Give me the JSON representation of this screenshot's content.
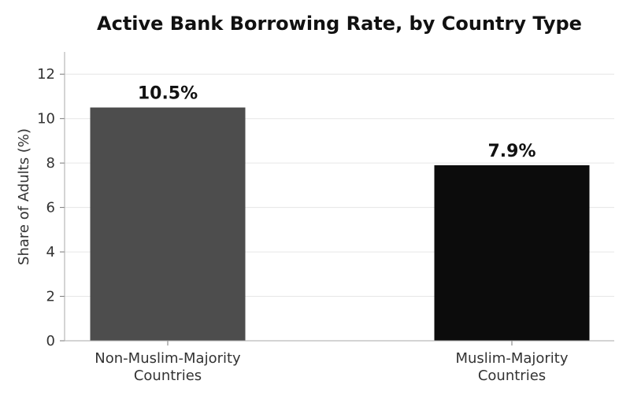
{
  "chart_data": {
    "type": "bar",
    "title": "Active Bank Borrowing Rate, by Country Type",
    "xlabel": "",
    "ylabel": "Share of Adults (%)",
    "categories": [
      [
        "Non-Muslim-Majority",
        "Countries"
      ],
      [
        "Muslim-Majority",
        "Countries"
      ]
    ],
    "values": [
      10.5,
      7.9
    ],
    "data_labels": [
      "10.5%",
      "7.9%"
    ],
    "colors": [
      "#4d4d4d",
      "#0c0c0c"
    ],
    "ylim": [
      0,
      13
    ],
    "yticks": [
      0,
      2,
      4,
      6,
      8,
      10,
      12
    ],
    "grid": true,
    "legend": "none"
  }
}
